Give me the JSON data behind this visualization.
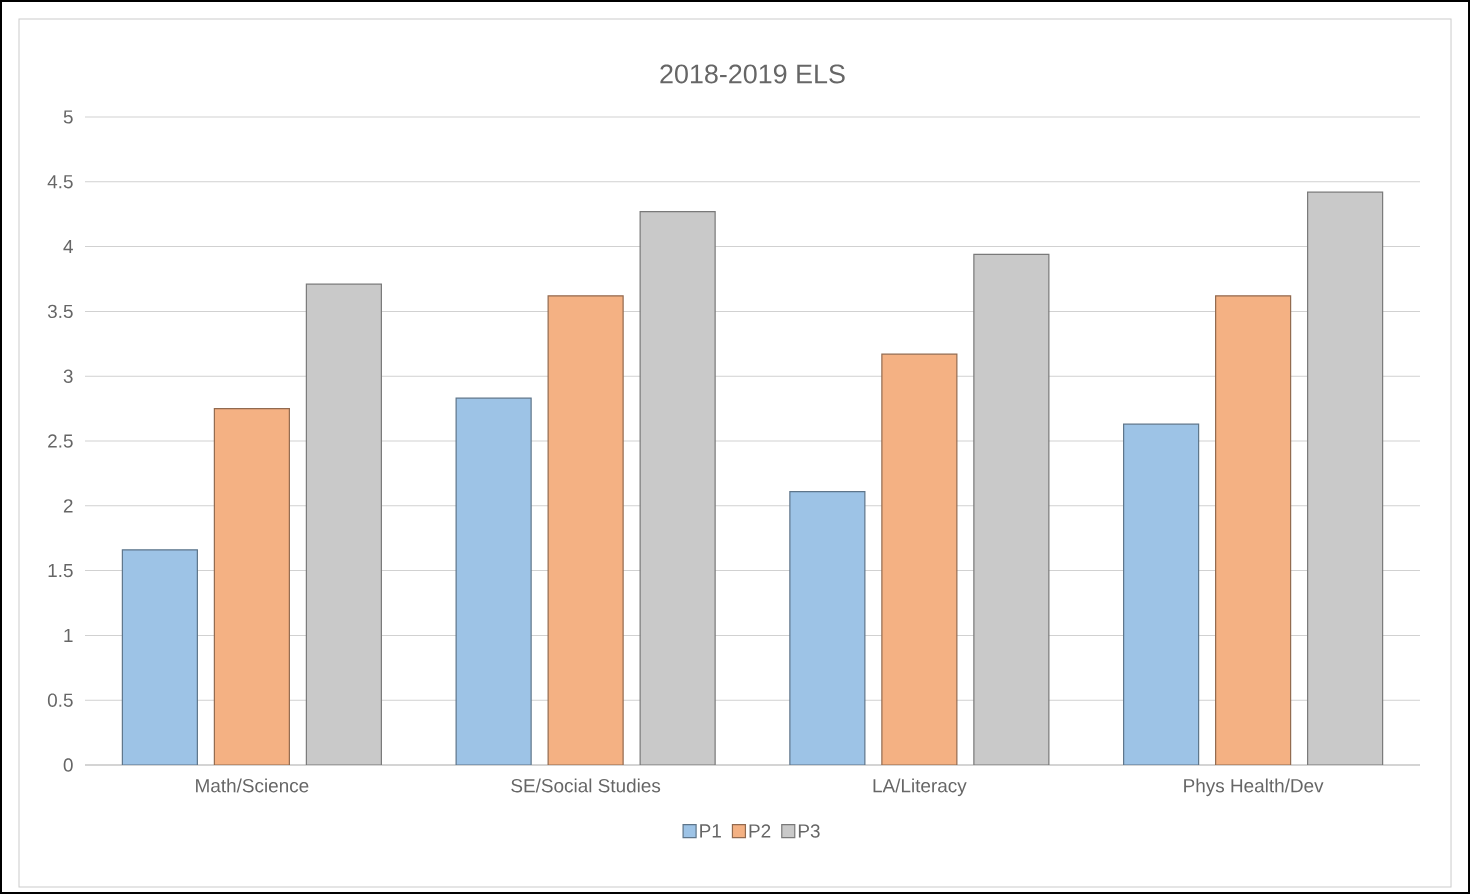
{
  "chart_data": {
    "type": "bar",
    "title": "2018-2019 ELS",
    "categories": [
      "Math/Science",
      "SE/Social Studies",
      "LA/Literacy",
      "Phys Health/Dev"
    ],
    "series": [
      {
        "name": "P1",
        "color": "#9dc3e6",
        "values": [
          1.66,
          2.83,
          2.11,
          2.63
        ]
      },
      {
        "name": "P2",
        "color": "#f4b183",
        "values": [
          2.75,
          3.62,
          3.17,
          3.62
        ]
      },
      {
        "name": "P3",
        "color": "#c9c9c9",
        "values": [
          3.71,
          4.27,
          3.94,
          4.42
        ]
      }
    ],
    "ylim": [
      0,
      5
    ],
    "yticks": [
      0,
      0.5,
      1,
      1.5,
      2,
      2.5,
      3,
      3.5,
      4,
      4.5,
      5
    ],
    "grid": "y",
    "legend": "bottom"
  }
}
